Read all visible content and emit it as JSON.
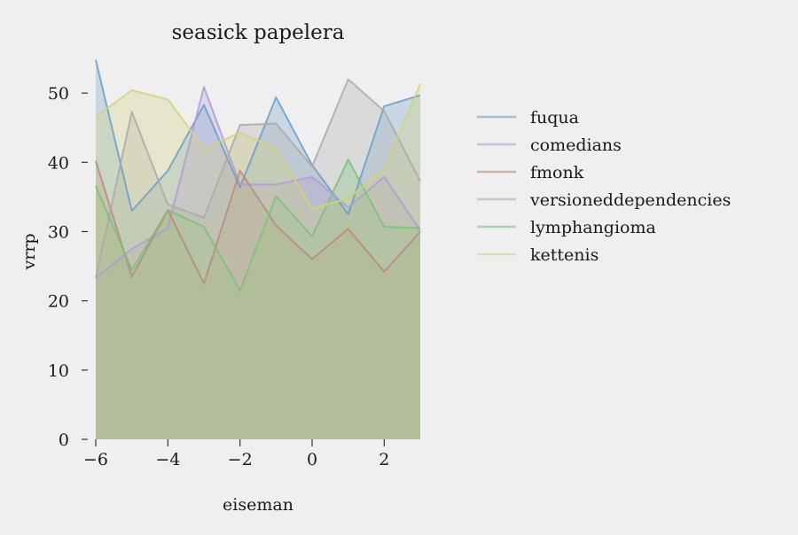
{
  "chart_data": {
    "type": "area",
    "title": "seasick papelera",
    "xlabel": "eiseman",
    "ylabel": "vrrp",
    "x": [
      -6,
      -5,
      -4,
      -3,
      -2,
      -1,
      0,
      1,
      2,
      3
    ],
    "xlim": [
      -6,
      3
    ],
    "ylim": [
      0,
      55
    ],
    "xticks": [
      -6,
      -4,
      -2,
      0,
      2
    ],
    "xtick_labels": [
      "−6",
      "−4",
      "−2",
      "0",
      "2"
    ],
    "yticks": [
      0,
      10,
      20,
      30,
      40,
      50
    ],
    "ytick_labels": [
      "0",
      "10",
      "20",
      "30",
      "40",
      "50"
    ],
    "grid": false,
    "stacked": false,
    "fill_alpha": 0.3,
    "legend_position": "right",
    "series": [
      {
        "name": "fuqua",
        "color": "#6a9fc9",
        "values": [
          54.8,
          33.0,
          38.8,
          48.3,
          36.4,
          49.4,
          39.6,
          32.5,
          48.1,
          49.7
        ]
      },
      {
        "name": "comedians",
        "color": "#b09bd6",
        "values": [
          23.3,
          27.5,
          30.5,
          50.9,
          36.8,
          36.8,
          37.9,
          33.5,
          37.9,
          30.2
        ]
      },
      {
        "name": "fmonk",
        "color": "#b88a7e",
        "values": [
          40.2,
          23.5,
          33.1,
          22.5,
          38.8,
          30.9,
          26.0,
          30.4,
          24.2,
          30.0
        ]
      },
      {
        "name": "versioneddependencies",
        "color": "#aaaaaa",
        "values": [
          23.3,
          47.3,
          33.9,
          32.0,
          45.4,
          45.6,
          39.4,
          52.0,
          47.4,
          37.3
        ]
      },
      {
        "name": "lymphangioma",
        "color": "#7cc07a",
        "values": [
          36.6,
          24.5,
          33.1,
          30.7,
          21.5,
          35.1,
          29.3,
          40.4,
          30.7,
          30.5
        ]
      },
      {
        "name": "kettenis",
        "color": "#d3d27a",
        "values": [
          46.6,
          50.4,
          49.1,
          42.0,
          44.3,
          42.0,
          33.3,
          34.8,
          39.0,
          51.3
        ]
      }
    ]
  }
}
